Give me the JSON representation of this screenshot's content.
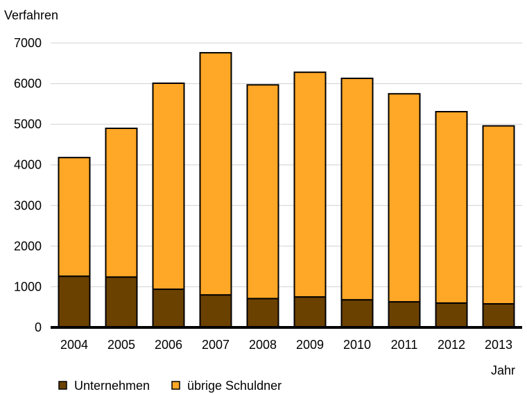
{
  "chart_data": {
    "type": "bar",
    "stacked": true,
    "ylabel": "Verfahren",
    "xlabel": "Jahr",
    "ylim": [
      0,
      7000
    ],
    "yticks": [
      0,
      1000,
      2000,
      3000,
      4000,
      5000,
      6000,
      7000
    ],
    "grid": true,
    "legend_position": "bottom-left",
    "categories": [
      "2004",
      "2005",
      "2006",
      "2007",
      "2008",
      "2009",
      "2010",
      "2011",
      "2012",
      "2013"
    ],
    "series": [
      {
        "name": "Unternehmen",
        "color": "#6b4100",
        "values": [
          1260,
          1240,
          940,
          800,
          710,
          750,
          680,
          630,
          600,
          580
        ]
      },
      {
        "name": "übrige Schuldner",
        "color": "#ffa726",
        "values": [
          2920,
          3660,
          5070,
          5960,
          5260,
          5530,
          5450,
          5120,
          4710,
          4380
        ]
      }
    ]
  }
}
